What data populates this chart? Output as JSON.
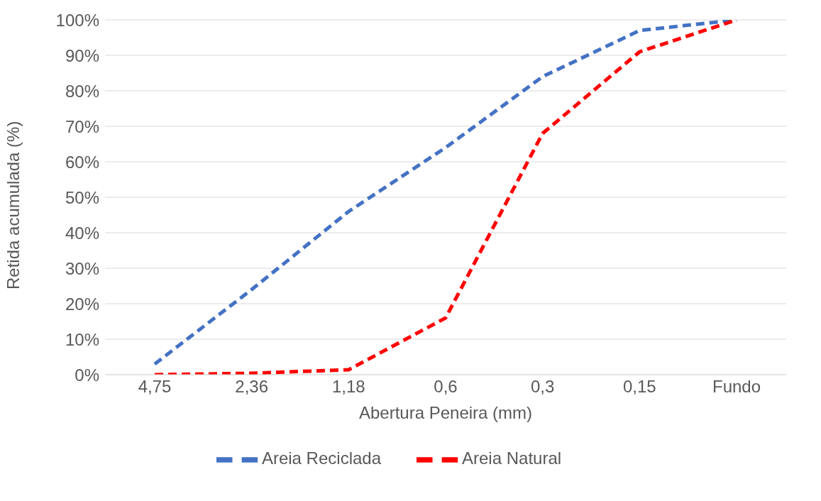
{
  "chart_data": {
    "type": "line",
    "xlabel": "Abertura Peneira (mm)",
    "ylabel": "Retida acumulada (%)",
    "categories": [
      "4,75",
      "2,36",
      "1,18",
      "0,6",
      "0,3",
      "0,15",
      "Fundo"
    ],
    "series": [
      {
        "name": "Areia Reciclada",
        "color": "#4472c4",
        "values": [
          3,
          24,
          46,
          64,
          84,
          97,
          100
        ]
      },
      {
        "name": "Areia Natural",
        "color": "#ff0000",
        "values": [
          0,
          0.4,
          1.4,
          16,
          68,
          91,
          100
        ]
      }
    ],
    "ylim": [
      0,
      100
    ],
    "yticks": [
      {
        "value": 0,
        "label": "0%"
      },
      {
        "value": 10,
        "label": "10%"
      },
      {
        "value": 20,
        "label": "20%"
      },
      {
        "value": 30,
        "label": "30%"
      },
      {
        "value": 40,
        "label": "40%"
      },
      {
        "value": 50,
        "label": "50%"
      },
      {
        "value": 60,
        "label": "60%"
      },
      {
        "value": 70,
        "label": "70%"
      },
      {
        "value": 80,
        "label": "80%"
      },
      {
        "value": 90,
        "label": "90%"
      },
      {
        "value": 100,
        "label": "100%"
      }
    ],
    "grid": "y",
    "legend": "bottom",
    "marker": "none",
    "line_style": "dashed"
  }
}
